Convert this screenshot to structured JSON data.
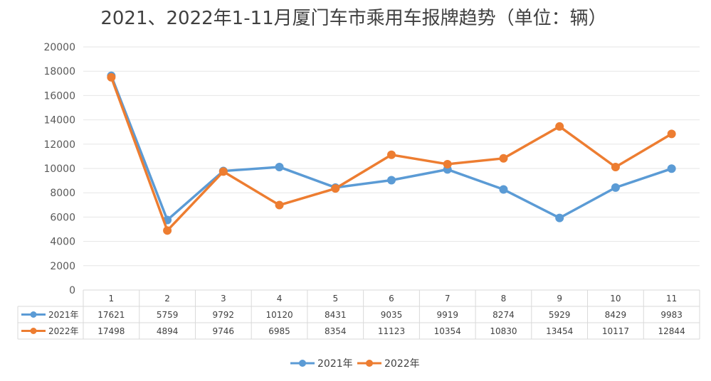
{
  "chart_data": {
    "type": "line",
    "title": "2021、2022年1-11月厦门车市乘用车报牌趋势（单位：辆）",
    "categories": [
      "1",
      "2",
      "3",
      "4",
      "5",
      "6",
      "7",
      "8",
      "9",
      "10",
      "11"
    ],
    "ylim": [
      0,
      20000
    ],
    "yticks": [
      "0",
      "2000",
      "4000",
      "6000",
      "8000",
      "10000",
      "12000",
      "14000",
      "16000",
      "18000",
      "20000"
    ],
    "grid": true,
    "legend": "bottom",
    "data_table": true,
    "series": [
      {
        "name": "2021年",
        "color": "#5B9BD5",
        "values": [
          17621,
          5759,
          9792,
          10120,
          8431,
          9035,
          9919,
          8274,
          5929,
          8429,
          9983
        ]
      },
      {
        "name": "2022年",
        "color": "#ED7D31",
        "values": [
          17498,
          4894,
          9746,
          6985,
          8354,
          11123,
          10354,
          10830,
          13454,
          10117,
          12844
        ]
      }
    ]
  }
}
